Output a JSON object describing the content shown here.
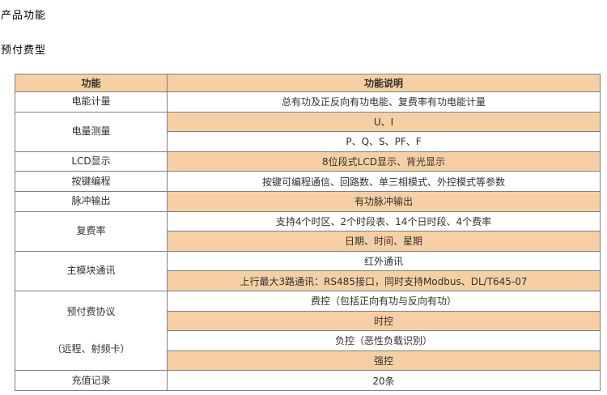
{
  "page": {
    "title": "产品功能",
    "subtitle": "预付费型"
  },
  "colors": {
    "cell_shaded": "#f6d0a4",
    "border": "#7f7f7f",
    "text": "#303030"
  },
  "table": {
    "headers": [
      "功能",
      "功能说明"
    ],
    "groups": [
      {
        "function_lines": [
          "电能计量"
        ],
        "details": [
          {
            "text": "总有功及正反向有功电能、复费率有功电能计量",
            "shaded": false
          }
        ]
      },
      {
        "function_lines": [
          "电量测量"
        ],
        "details": [
          {
            "text": "U、I",
            "shaded": true
          },
          {
            "text": "P、Q、S、PF、F",
            "shaded": false
          }
        ]
      },
      {
        "function_lines": [
          "LCD显示"
        ],
        "details": [
          {
            "text": "8位段式LCD显示、背光显示",
            "shaded": true
          }
        ]
      },
      {
        "function_lines": [
          "按键编程"
        ],
        "details": [
          {
            "text": "按键可编程通信、回路数、单三相模式、外控模式等参数",
            "shaded": false
          }
        ]
      },
      {
        "function_lines": [
          "脉冲输出"
        ],
        "details": [
          {
            "text": "有功脉冲输出",
            "shaded": true
          }
        ]
      },
      {
        "function_lines": [
          "复费率"
        ],
        "details": [
          {
            "text": "支持4个时区、2个时段表、14个日时段、4个费率",
            "shaded": false
          },
          {
            "text": "日期、时间、星期",
            "shaded": true
          }
        ]
      },
      {
        "function_lines": [
          "主模块通讯"
        ],
        "details": [
          {
            "text": "红外通讯",
            "shaded": false
          },
          {
            "text": "上行最大3路通讯：RS485接口，同时支持Modbus、DL/T645-07",
            "shaded": true
          }
        ]
      },
      {
        "function_lines": [
          "预付费协议",
          "（远程、射频卡）"
        ],
        "details": [
          {
            "text": "费控（包括正向有功与反向有功）",
            "shaded": false
          },
          {
            "text": "时控",
            "shaded": true
          },
          {
            "text": "负控（恶性负载识别）",
            "shaded": false
          },
          {
            "text": "强控",
            "shaded": true
          }
        ]
      },
      {
        "function_lines": [
          "充值记录"
        ],
        "details": [
          {
            "text": "20条",
            "shaded": false
          }
        ]
      }
    ]
  }
}
